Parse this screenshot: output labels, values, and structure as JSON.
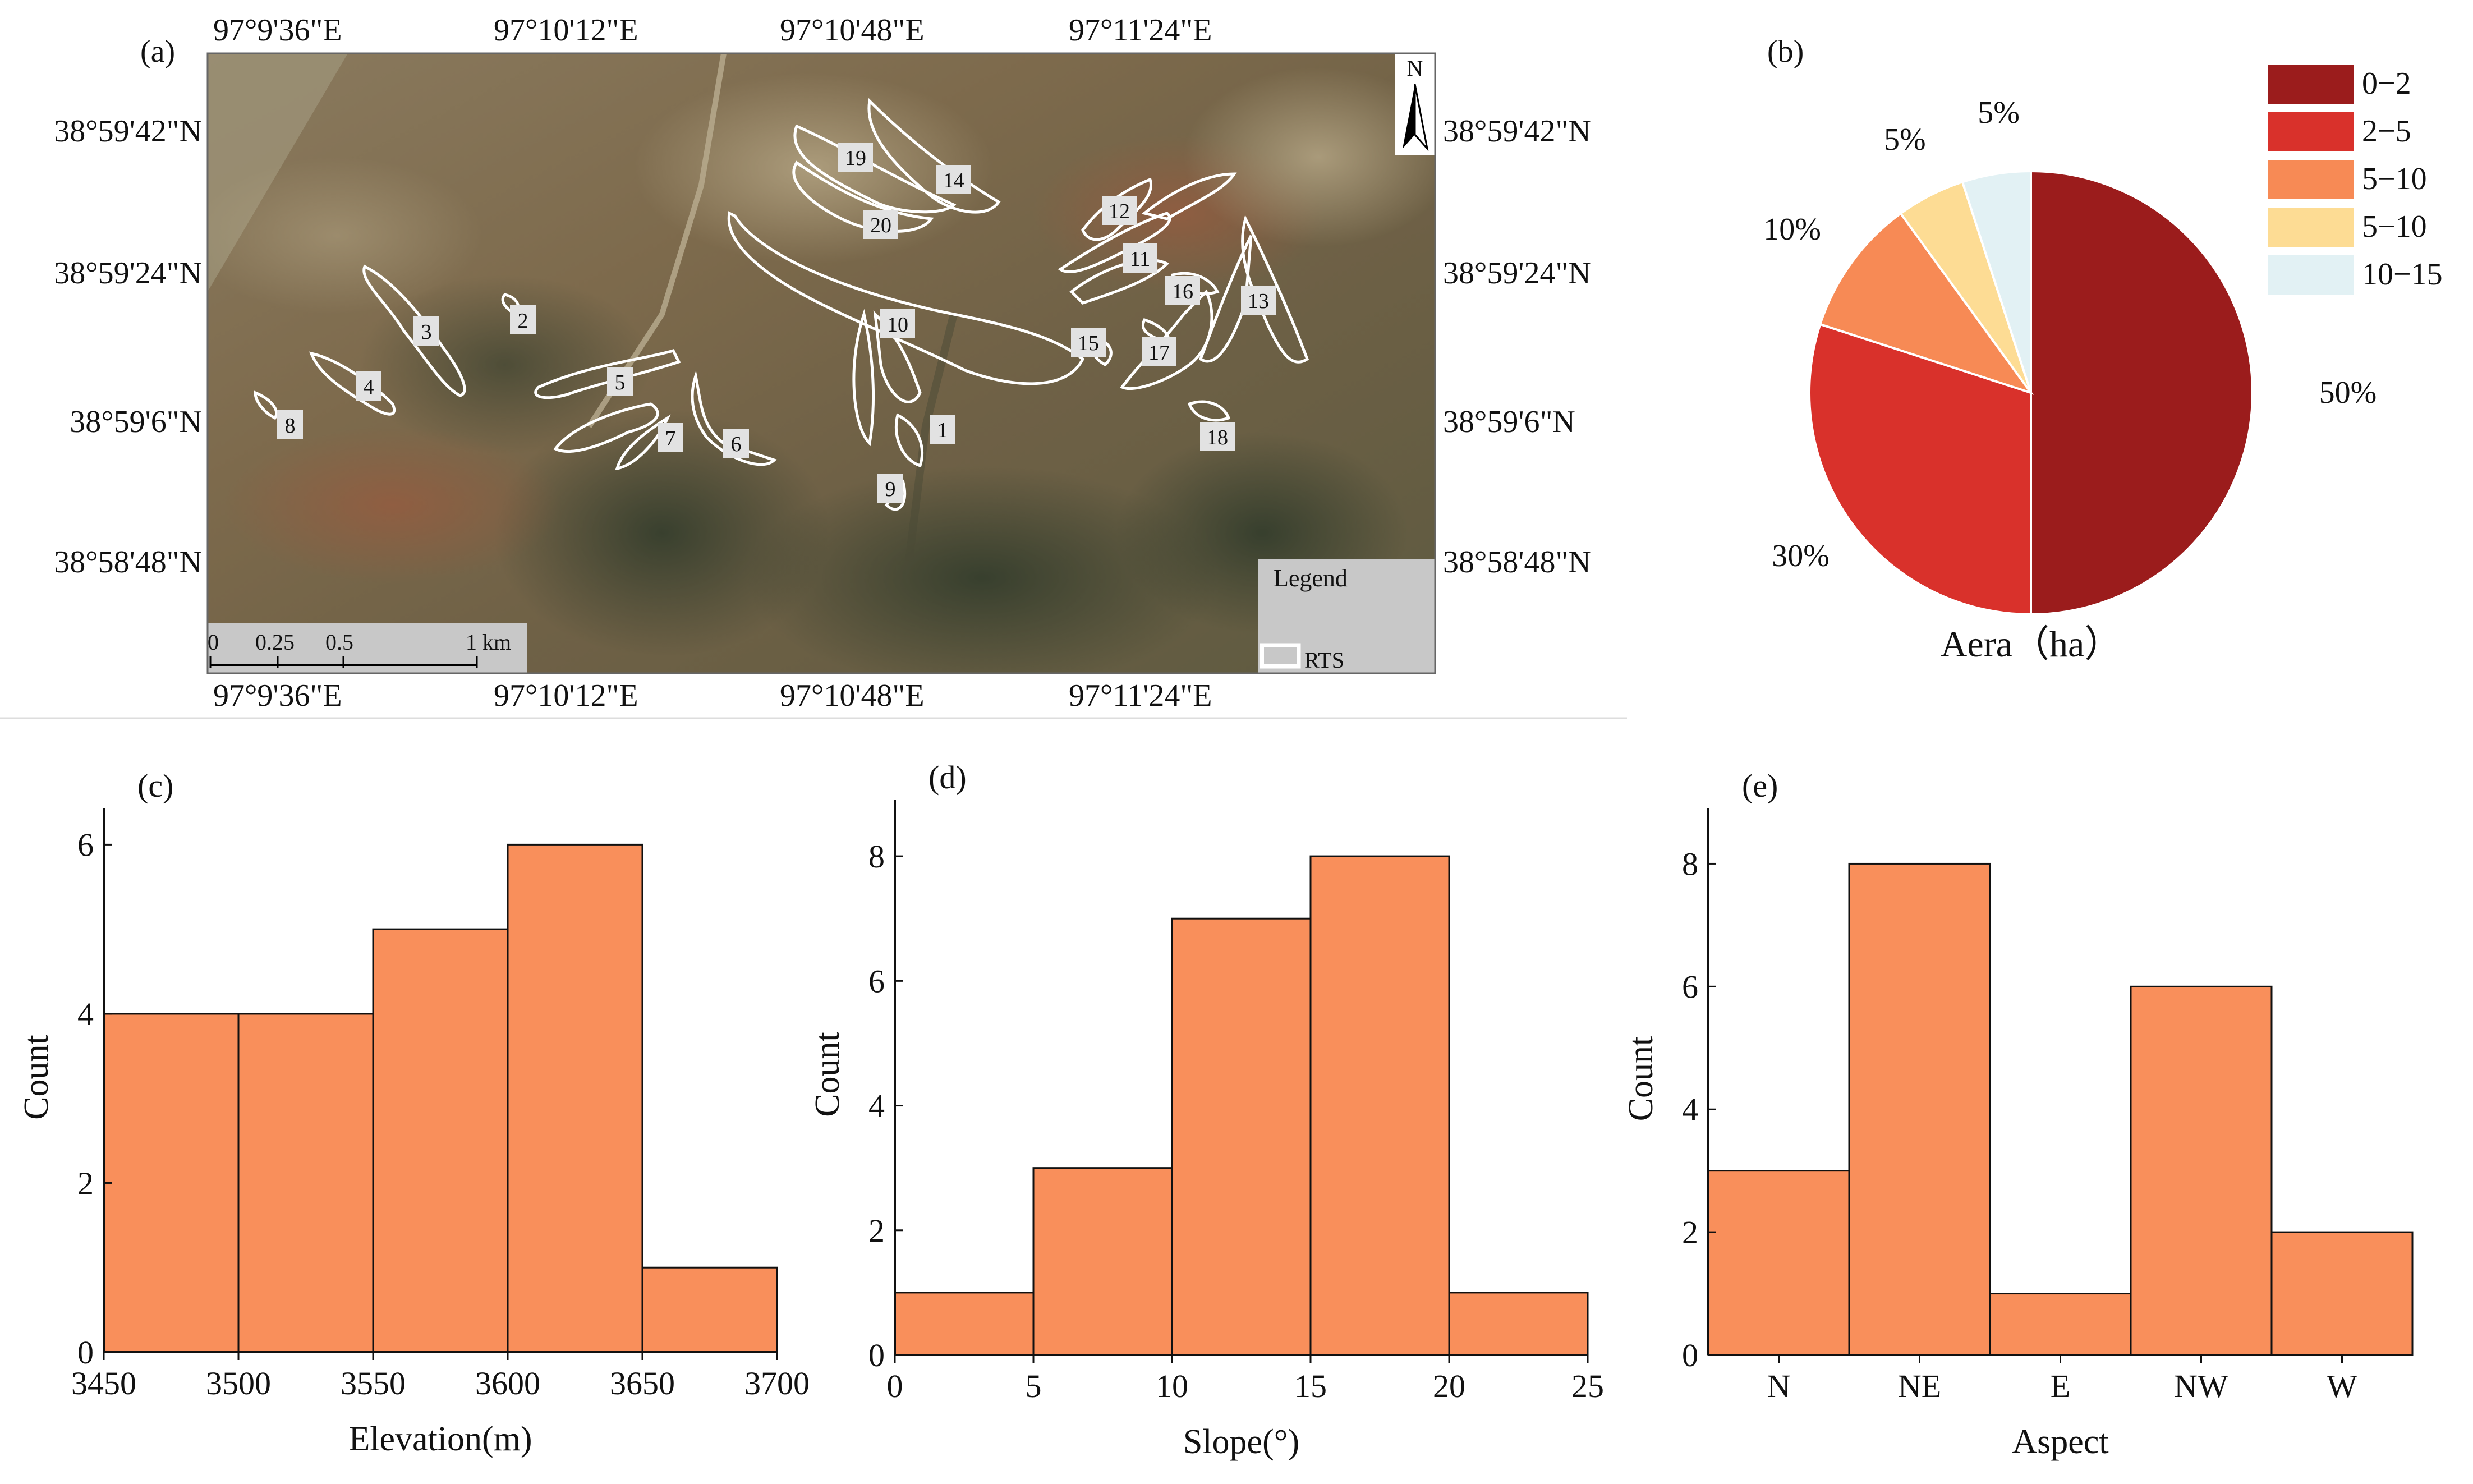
{
  "map_panel": {
    "label": "(a)",
    "top_lon": [
      "97°9'36\"E",
      "97°10'12\"E",
      "97°10'48\"E",
      "97°11'24\"E"
    ],
    "bottom_lon": [
      "97°9'36\"E",
      "97°10'12\"E",
      "97°10'48\"E",
      "97°11'24\"E"
    ],
    "left_lat": [
      "38°59'42\"N",
      "38°59'24\"N",
      "38°59'6\"N",
      "38°58'48\"N"
    ],
    "right_lat": [
      "38°59'42\"N",
      "38°59'24\"N",
      "38°59'6\"N",
      "38°58'48\"N"
    ],
    "north": "N",
    "scale_ticks": [
      "0",
      "0.25",
      "0.5",
      "1 km"
    ],
    "legend_title": "Legend",
    "legend_item": "RTS",
    "rts_labels": [
      "1",
      "2",
      "3",
      "4",
      "5",
      "6",
      "7",
      "8",
      "9",
      "10",
      "11",
      "12",
      "13",
      "14",
      "15",
      "16",
      "17",
      "18",
      "19",
      "20"
    ],
    "colors": {
      "outline": "#ffffff",
      "label_box": "#e2e2e2",
      "legend_bg": "#c8c8c8"
    }
  },
  "chart_data": [
    {
      "panel": "(b)",
      "type": "pie",
      "title": "Aera（ha）",
      "categories": [
        "0−2",
        "2−5",
        "5−10",
        "5−10",
        "10−15"
      ],
      "values": [
        50,
        30,
        10,
        5,
        5
      ],
      "value_labels": [
        "50%",
        "30%",
        "10%",
        "5%",
        "5%"
      ],
      "colors": [
        "#9b1c1c",
        "#d9312b",
        "#f78a55",
        "#fddc94",
        "#e2f1f4"
      ],
      "legend": "right"
    },
    {
      "panel": "(c)",
      "type": "bar",
      "xlabel": "Elevation(m)",
      "ylabel": "Count",
      "bin_edges": [
        3450,
        3500,
        3550,
        3600,
        3650,
        3700
      ],
      "values": [
        4,
        4,
        5,
        6,
        1
      ],
      "xticks": [
        "3450",
        "3500",
        "3550",
        "3600",
        "3650",
        "3700"
      ],
      "yticks": [
        "0",
        "2",
        "4",
        "6"
      ],
      "ylim": [
        0,
        6.5
      ],
      "color": "#f98f5b"
    },
    {
      "panel": "(d)",
      "type": "bar",
      "xlabel": "Slope(°)",
      "ylabel": "Count",
      "bin_edges": [
        0,
        5,
        10,
        15,
        20,
        25
      ],
      "values": [
        1,
        3,
        7,
        8,
        1
      ],
      "xticks": [
        "0",
        "5",
        "10",
        "15",
        "20",
        "25"
      ],
      "yticks": [
        "0",
        "2",
        "4",
        "6",
        "8"
      ],
      "ylim": [
        0,
        9
      ],
      "color": "#f98f5b"
    },
    {
      "panel": "(e)",
      "type": "bar",
      "xlabel": "Aspect",
      "ylabel": "Count",
      "categories": [
        "N",
        "NE",
        "E",
        "NW",
        "W"
      ],
      "values": [
        3,
        8,
        1,
        6,
        2
      ],
      "yticks": [
        "0",
        "2",
        "4",
        "6",
        "8"
      ],
      "ylim": [
        0,
        9
      ],
      "color": "#f98f5b"
    }
  ]
}
